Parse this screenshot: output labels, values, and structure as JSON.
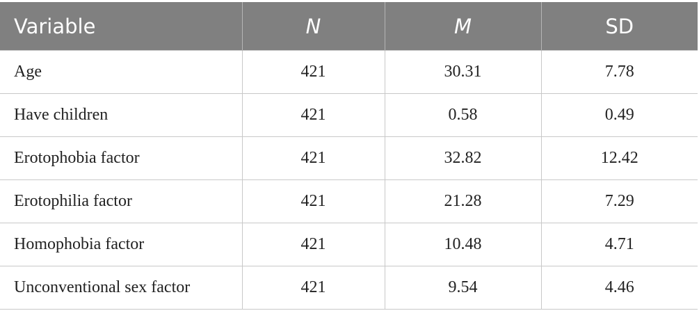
{
  "table": {
    "header": [
      "Variable",
      "N",
      "M",
      "SD"
    ],
    "rows": [
      [
        "Age",
        421,
        30.31,
        7.78
      ],
      [
        "Have children",
        421,
        0.58,
        0.49
      ],
      [
        "Erotophobia factor",
        421,
        32.82,
        12.42
      ],
      [
        "Erotophilia factor",
        421,
        21.28,
        7.29
      ],
      [
        "Homophobia factor",
        421,
        10.48,
        4.71
      ],
      [
        "Unconventional sex factor",
        421,
        9.54,
        4.46
      ]
    ]
  }
}
